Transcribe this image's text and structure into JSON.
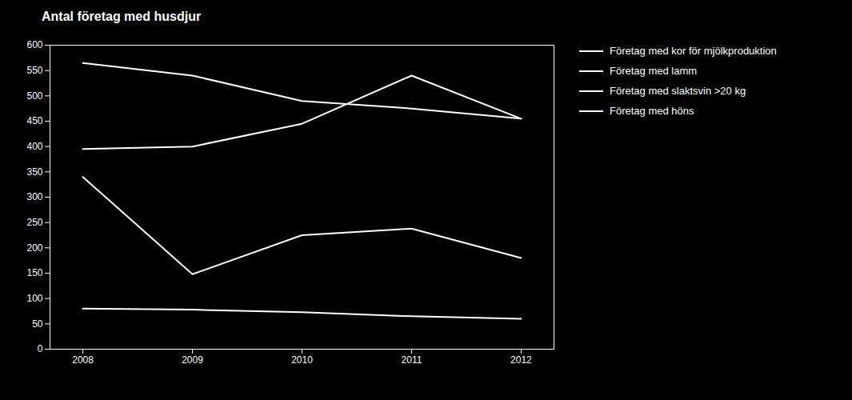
{
  "chart_data": {
    "type": "line",
    "title": "Antal företag med husdjur",
    "x": [
      2008,
      2009,
      2010,
      2011,
      2012
    ],
    "series": [
      {
        "name": "Företag med kor för mjölkproduktion",
        "color": "#ffffff",
        "values": [
          565,
          540,
          490,
          475,
          455
        ]
      },
      {
        "name": "Företag med lamm",
        "color": "#ffffff",
        "values": [
          395,
          400,
          445,
          540,
          455
        ]
      },
      {
        "name": "Företag med slaktsvin >20 kg",
        "color": "#ffffff",
        "values": [
          340,
          148,
          225,
          238,
          180
        ]
      },
      {
        "name": "Företag med höns",
        "color": "#ffffff",
        "values": [
          80,
          78,
          73,
          65,
          60
        ]
      }
    ],
    "xlim": [
      2007.7,
      2012.3
    ],
    "xticks": [
      2008,
      2009,
      2010,
      2011,
      2012
    ],
    "ylim": [
      0,
      600
    ],
    "yticks": [
      0,
      50,
      100,
      150,
      200,
      250,
      300,
      350,
      400,
      450,
      500,
      550,
      600
    ],
    "grid": false,
    "legend": "right"
  }
}
